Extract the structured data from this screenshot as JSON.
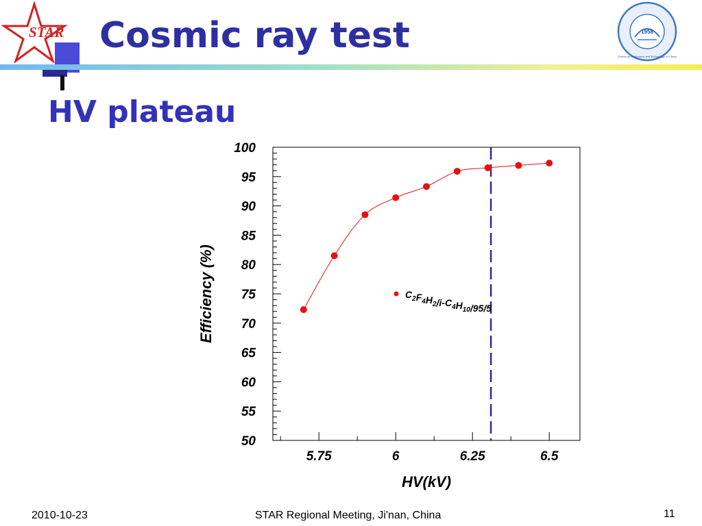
{
  "slide": {
    "title": "Cosmic ray test",
    "subtitle": "HV plateau",
    "logo_text": "STAR",
    "university_seal_text": "University of Science and Technology of China",
    "university_seal_year": "1958"
  },
  "footer": {
    "date": "2010-10-23",
    "center": "STAR Regional Meeting, Ji'nan, China",
    "page": "11"
  },
  "colors": {
    "title": "#2e2fa0",
    "data_points": "#e81010",
    "dashed_line": "#2a2a9a",
    "logo_red": "#d42020"
  },
  "chart_data": {
    "type": "scatter",
    "xlabel": "HV(kV)",
    "ylabel": "Efficiency (%)",
    "xlim": [
      5.6,
      6.6
    ],
    "ylim": [
      50,
      100
    ],
    "x_ticks": [
      5.75,
      6,
      6.25,
      6.5
    ],
    "x_tick_labels": [
      "5.75",
      "6",
      "6.25",
      "6.5"
    ],
    "y_ticks": [
      50,
      55,
      60,
      65,
      70,
      75,
      80,
      85,
      90,
      95,
      100
    ],
    "y_tick_labels": [
      "50",
      "55",
      "60",
      "65",
      "70",
      "75",
      "80",
      "85",
      "90",
      "95",
      "100"
    ],
    "series": [
      {
        "name_parts": [
          {
            "t": "C",
            "sub": false
          },
          {
            "t": "2",
            "sub": true
          },
          {
            "t": "F",
            "sub": false
          },
          {
            "t": "4",
            "sub": true
          },
          {
            "t": "H",
            "sub": false
          },
          {
            "t": "2",
            "sub": true
          },
          {
            "t": "/i-C",
            "sub": false
          },
          {
            "t": "4",
            "sub": true
          },
          {
            "t": "H",
            "sub": false
          },
          {
            "t": "10",
            "sub": true
          },
          {
            "t": "/95/5",
            "sub": false
          }
        ],
        "x": [
          5.7,
          5.8,
          5.9,
          6.0,
          6.1,
          6.2,
          6.3,
          6.4,
          6.5
        ],
        "y": [
          72.3,
          81.5,
          88.5,
          91.4,
          93.3,
          95.9,
          96.5,
          96.9,
          97.3
        ]
      }
    ],
    "reference_line_x": 6.31,
    "legend_position": "center-right"
  }
}
